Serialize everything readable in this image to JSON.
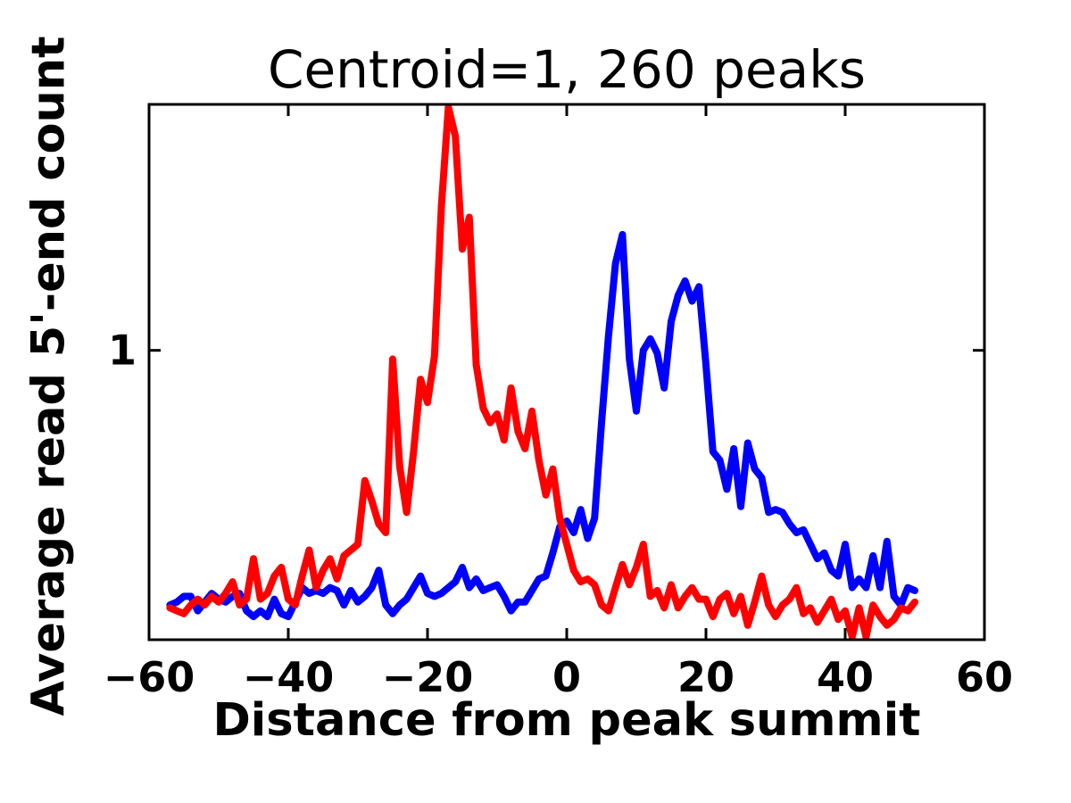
{
  "title": "Centroid=1, 260 peaks",
  "chart_data": {
    "type": "line",
    "title": "Centroid=1, 260 peaks",
    "xlabel": "Distance from peak summit",
    "ylabel": "Average read 5'-end count",
    "xlim": [
      -60,
      60
    ],
    "ylim": [
      0,
      1.85
    ],
    "xticks": [
      -60,
      -40,
      -20,
      0,
      20,
      40,
      60
    ],
    "xtick_labels": [
      "−60",
      "−40",
      "−20",
      "0",
      "20",
      "40",
      "60"
    ],
    "yticks": [
      1
    ],
    "ytick_labels": [
      "1"
    ],
    "grid": false,
    "legend_position": "none",
    "frame_color": "#000000",
    "series": [
      {
        "name": "blue-profile",
        "color": "#0000ff",
        "x": [
          -57,
          -56,
          -55,
          -54,
          -53,
          -52,
          -51,
          -50,
          -49,
          -48,
          -47,
          -46,
          -45,
          -44,
          -43,
          -42,
          -41,
          -40,
          -39,
          -38,
          -37,
          -36,
          -35,
          -34,
          -33,
          -32,
          -31,
          -30,
          -29,
          -28,
          -27,
          -26,
          -25,
          -24,
          -23,
          -22,
          -21,
          -20,
          -19,
          -18,
          -17,
          -16,
          -15,
          -14,
          -13,
          -12,
          -11,
          -10,
          -9,
          -8,
          -7,
          -6,
          -5,
          -4,
          -3,
          -2,
          -1,
          0,
          1,
          2,
          3,
          4,
          5,
          6,
          7,
          8,
          9,
          10,
          11,
          12,
          13,
          14,
          15,
          16,
          17,
          18,
          19,
          20,
          21,
          22,
          23,
          24,
          25,
          26,
          27,
          28,
          29,
          30,
          31,
          32,
          33,
          34,
          35,
          36,
          37,
          38,
          39,
          40,
          41,
          42,
          43,
          44,
          45,
          46,
          47,
          48,
          49,
          50
        ],
        "values": [
          0.12,
          0.13,
          0.15,
          0.15,
          0.1,
          0.13,
          0.16,
          0.14,
          0.13,
          0.15,
          0.16,
          0.1,
          0.08,
          0.1,
          0.08,
          0.14,
          0.09,
          0.08,
          0.13,
          0.18,
          0.16,
          0.17,
          0.16,
          0.18,
          0.17,
          0.12,
          0.17,
          0.13,
          0.15,
          0.18,
          0.24,
          0.12,
          0.09,
          0.12,
          0.14,
          0.18,
          0.22,
          0.16,
          0.15,
          0.16,
          0.18,
          0.2,
          0.25,
          0.18,
          0.21,
          0.17,
          0.18,
          0.19,
          0.15,
          0.1,
          0.13,
          0.13,
          0.17,
          0.21,
          0.22,
          0.3,
          0.39,
          0.41,
          0.37,
          0.45,
          0.35,
          0.42,
          0.75,
          1.05,
          1.3,
          1.4,
          0.97,
          0.79,
          1.0,
          1.04,
          0.99,
          0.87,
          1.1,
          1.19,
          1.24,
          1.17,
          1.22,
          0.95,
          0.65,
          0.62,
          0.52,
          0.66,
          0.46,
          0.68,
          0.59,
          0.56,
          0.44,
          0.45,
          0.44,
          0.4,
          0.37,
          0.38,
          0.33,
          0.28,
          0.3,
          0.24,
          0.22,
          0.33,
          0.18,
          0.21,
          0.18,
          0.29,
          0.18,
          0.34,
          0.15,
          0.12,
          0.18,
          0.17
        ]
      },
      {
        "name": "red-profile",
        "color": "#ff0000",
        "x": [
          -57,
          -56,
          -55,
          -54,
          -53,
          -52,
          -51,
          -50,
          -49,
          -48,
          -47,
          -46,
          -45,
          -44,
          -43,
          -42,
          -41,
          -40,
          -39,
          -38,
          -37,
          -36,
          -35,
          -34,
          -33,
          -32,
          -31,
          -30,
          -29,
          -28,
          -27,
          -26,
          -25,
          -24,
          -23,
          -22,
          -21,
          -20,
          -19,
          -18,
          -17,
          -16,
          -15,
          -14,
          -13,
          -12,
          -11,
          -10,
          -9,
          -8,
          -7,
          -6,
          -5,
          -4,
          -3,
          -2,
          -1,
          0,
          1,
          2,
          3,
          4,
          5,
          6,
          7,
          8,
          9,
          10,
          11,
          12,
          13,
          14,
          15,
          16,
          17,
          18,
          19,
          20,
          21,
          22,
          23,
          24,
          25,
          26,
          27,
          28,
          29,
          30,
          31,
          32,
          33,
          34,
          35,
          36,
          37,
          38,
          39,
          40,
          41,
          42,
          43,
          44,
          45,
          46,
          47,
          48,
          49,
          50
        ],
        "values": [
          0.11,
          0.1,
          0.09,
          0.12,
          0.14,
          0.12,
          0.15,
          0.13,
          0.16,
          0.2,
          0.12,
          0.14,
          0.28,
          0.14,
          0.16,
          0.22,
          0.25,
          0.14,
          0.12,
          0.22,
          0.31,
          0.18,
          0.24,
          0.28,
          0.21,
          0.29,
          0.31,
          0.33,
          0.55,
          0.48,
          0.4,
          0.37,
          0.97,
          0.6,
          0.44,
          0.65,
          0.9,
          0.82,
          0.98,
          1.5,
          1.84,
          1.74,
          1.35,
          1.46,
          0.95,
          0.8,
          0.75,
          0.78,
          0.69,
          0.87,
          0.72,
          0.66,
          0.79,
          0.62,
          0.5,
          0.59,
          0.42,
          0.33,
          0.24,
          0.2,
          0.21,
          0.19,
          0.12,
          0.1,
          0.18,
          0.26,
          0.19,
          0.25,
          0.33,
          0.15,
          0.17,
          0.11,
          0.19,
          0.11,
          0.15,
          0.18,
          0.14,
          0.14,
          0.08,
          0.14,
          0.16,
          0.09,
          0.15,
          0.05,
          0.13,
          0.22,
          0.12,
          0.08,
          0.12,
          0.14,
          0.18,
          0.09,
          0.11,
          0.06,
          0.1,
          0.14,
          0.07,
          0.1,
          0.01,
          0.11,
          0.01,
          0.12,
          0.08,
          0.05,
          0.07,
          0.11,
          0.1,
          0.13
        ]
      }
    ]
  }
}
